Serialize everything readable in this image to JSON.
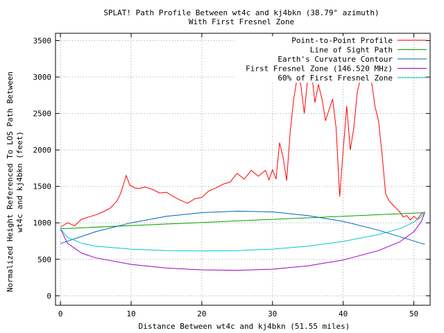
{
  "chart_data": {
    "type": "line",
    "title": "SPLAT! Path Profile Between wt4c and kj4bkn (38.79° azimuth)",
    "subtitle": "With First Fresnel Zone",
    "xlabel": "Distance Between wt4c and kj4bkn (51.55 miles)",
    "ylabel_line1": "Normalized Height Referenced To LOS Path Between",
    "ylabel_line2": "wt4c and kj4bkn (feet)",
    "xlim": [
      -0.7,
      52.3
    ],
    "ylim": [
      -130,
      3600
    ],
    "x_ticks": [
      0,
      10,
      20,
      30,
      40,
      50
    ],
    "y_ticks": [
      0,
      500,
      1000,
      1500,
      2000,
      2500,
      3000,
      3500
    ],
    "grid": true,
    "legend_position": "top-right",
    "series": [
      {
        "name": "Point-to-Point Profile",
        "color": "#ff0000",
        "x": [
          0,
          1,
          2,
          3,
          4,
          5,
          6,
          7,
          8,
          8.5,
          9,
          9.3,
          9.8,
          10.5,
          11,
          12,
          13,
          14,
          15,
          16,
          17,
          18,
          19,
          20,
          21,
          22,
          23,
          24,
          25,
          26,
          27,
          28,
          29,
          29.5,
          30,
          30.5,
          31,
          31.5,
          32,
          32.5,
          33,
          33.5,
          34,
          34.5,
          35,
          35.5,
          36,
          36.5,
          37,
          37.5,
          38,
          38.5,
          39,
          39.5,
          40,
          40.5,
          41,
          41.5,
          42,
          42.5,
          43,
          43.5,
          44,
          44.5,
          45,
          45.5,
          46,
          46.5,
          47,
          47.5,
          48,
          48.5,
          49,
          49.5,
          50,
          50.5,
          51,
          51.55
        ],
        "values": [
          940,
          1000,
          960,
          1050,
          1080,
          1110,
          1150,
          1200,
          1300,
          1400,
          1550,
          1650,
          1520,
          1480,
          1470,
          1490,
          1460,
          1410,
          1420,
          1360,
          1310,
          1270,
          1330,
          1350,
          1440,
          1480,
          1530,
          1560,
          1680,
          1600,
          1720,
          1640,
          1720,
          1590,
          1730,
          1600,
          2100,
          1900,
          1580,
          2250,
          2700,
          3000,
          2900,
          2500,
          3000,
          3100,
          2650,
          2900,
          2700,
          2400,
          2550,
          2700,
          2300,
          1360,
          2000,
          2600,
          2000,
          2300,
          2800,
          3000,
          3350,
          3100,
          2950,
          2600,
          2400,
          1950,
          1400,
          1300,
          1250,
          1200,
          1150,
          1080,
          1100,
          1040,
          1090,
          1050,
          1120,
          1150
        ]
      },
      {
        "name": "Line of Sight Path",
        "color": "#00a000",
        "x": [
          0,
          51.55
        ],
        "values": [
          920,
          1140
        ]
      },
      {
        "name": "Earth's Curvature Contour",
        "color": "#0060c0",
        "x": [
          0,
          5,
          10,
          15,
          20,
          25,
          30,
          35,
          40,
          45,
          51.55
        ],
        "values": [
          715,
          880,
          1000,
          1090,
          1140,
          1160,
          1150,
          1100,
          1020,
          900,
          705
        ]
      },
      {
        "name": "First Fresnel Zone (146.520 MHz)",
        "color": "#a000c0",
        "x": [
          0,
          1,
          3,
          5,
          10,
          15,
          20,
          25,
          30,
          35,
          40,
          45,
          48,
          50,
          51,
          51.55
        ],
        "values": [
          920,
          720,
          585,
          520,
          430,
          380,
          355,
          350,
          365,
          410,
          490,
          620,
          740,
          880,
          1010,
          1140
        ]
      },
      {
        "name": "60% of First Fresnel Zone",
        "color": "#00c8c8",
        "x": [
          0,
          1,
          3,
          5,
          10,
          15,
          20,
          25,
          30,
          35,
          40,
          45,
          48,
          50,
          51,
          51.55
        ],
        "values": [
          920,
          800,
          720,
          680,
          640,
          620,
          615,
          620,
          640,
          680,
          745,
          840,
          920,
          1010,
          1080,
          1140
        ]
      }
    ]
  }
}
